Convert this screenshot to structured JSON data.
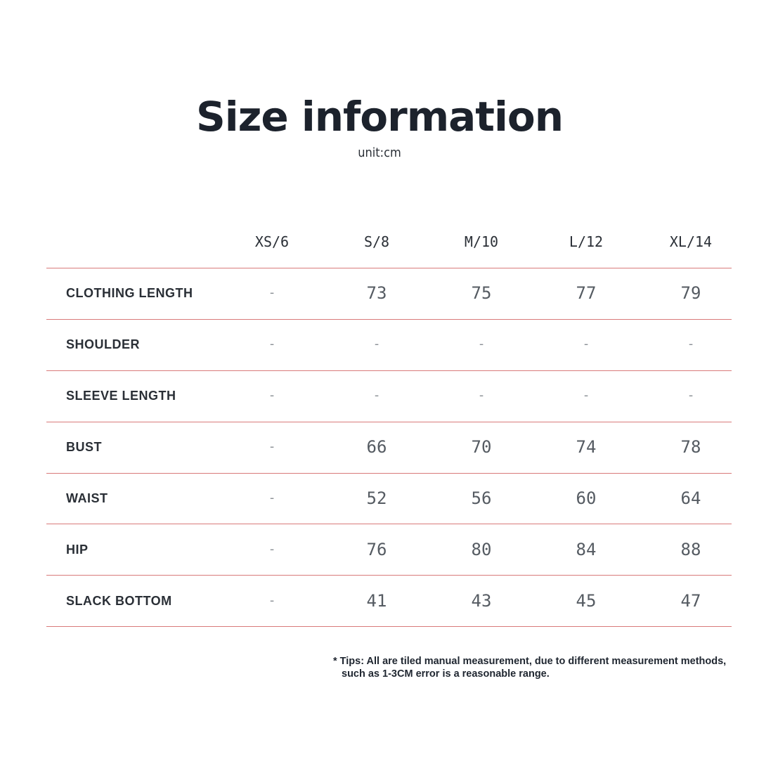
{
  "title": "Size information",
  "unit": "unit:cm",
  "table": {
    "columns": [
      "XS/6",
      "S/8",
      "M/10",
      "L/12",
      "XL/14"
    ],
    "rows": [
      {
        "label": "CLOTHING LENGTH",
        "values": [
          "-",
          "73",
          "75",
          "77",
          "79"
        ]
      },
      {
        "label": "SHOULDER",
        "values": [
          "-",
          "-",
          "-",
          "-",
          "-"
        ]
      },
      {
        "label": "SLEEVE LENGTH",
        "values": [
          "-",
          "-",
          "-",
          "-",
          "-"
        ]
      },
      {
        "label": "BUST",
        "values": [
          "-",
          "66",
          "70",
          "74",
          "78"
        ]
      },
      {
        "label": "WAIST",
        "values": [
          "-",
          "52",
          "56",
          "60",
          "64"
        ]
      },
      {
        "label": "HIP",
        "values": [
          "-",
          "76",
          "80",
          "84",
          "88"
        ]
      },
      {
        "label": "SLACK BOTTOM",
        "values": [
          "-",
          "41",
          "43",
          "45",
          "47"
        ]
      }
    ],
    "rule_color": "#d97a7a"
  },
  "tips": {
    "line1": "* Tips: All are tiled manual measurement, due to different measurement methods,",
    "line2": "such as 1-3CM error is a reasonable range."
  }
}
